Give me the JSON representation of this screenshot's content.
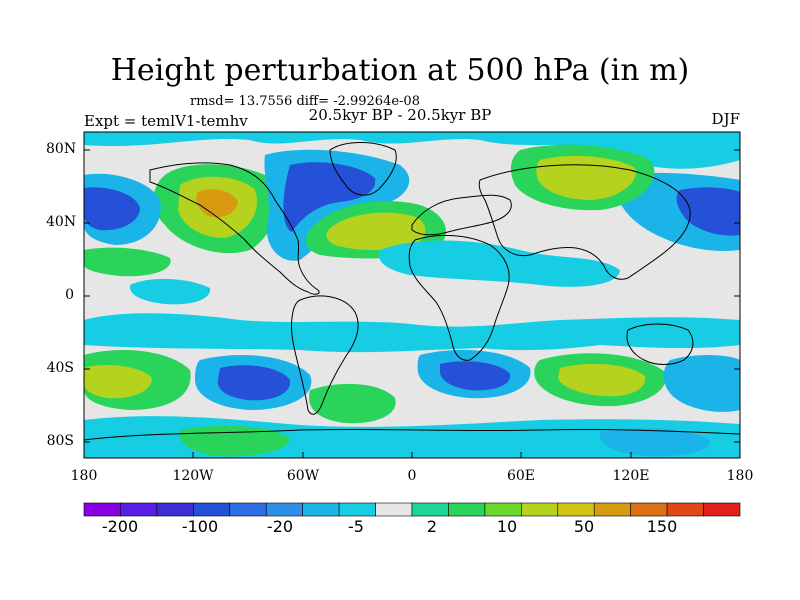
{
  "title": "Height perturbation at 500 hPa (in m)",
  "stats": "rmsd= 13.7556 diff= -2.99264e-08",
  "subtitle": "20.5kyr BP - 20.5kyr BP",
  "experiment": "Expt = temlV1-temhv",
  "season": "DJF",
  "lat_labels": [
    "80N",
    "40N",
    "0",
    "40S",
    "80S"
  ],
  "lon_labels": [
    "180",
    "120W",
    "60W",
    "0",
    "60E",
    "120E",
    "180"
  ],
  "colorbar": {
    "labels": [
      "-200",
      "-100",
      "-20",
      "-5",
      "2",
      "10",
      "50",
      "150"
    ],
    "colors": [
      "#8a00e6",
      "#5a1fe6",
      "#3c2fd6",
      "#2451d8",
      "#2e6fe6",
      "#2d90e8",
      "#1ab4e8",
      "#16cde3",
      "#e6e6e6",
      "#1fd69a",
      "#2ad45a",
      "#6ad82a",
      "#b4d21e",
      "#d2c414",
      "#d89a10",
      "#dc7012",
      "#e04818",
      "#e0201a"
    ]
  },
  "map_colors": {
    "neutral": "#e6e6e6",
    "neg_light": "#16cde3",
    "neg_mid": "#1ab4e8",
    "neg_strong": "#2d90e8",
    "neg_deep": "#2451d8",
    "pos_light": "#2ad45a",
    "pos_mid": "#6ad82a",
    "pos_strong": "#b4d21e",
    "pos_deep": "#d2c414",
    "pos_max": "#d89a10"
  }
}
